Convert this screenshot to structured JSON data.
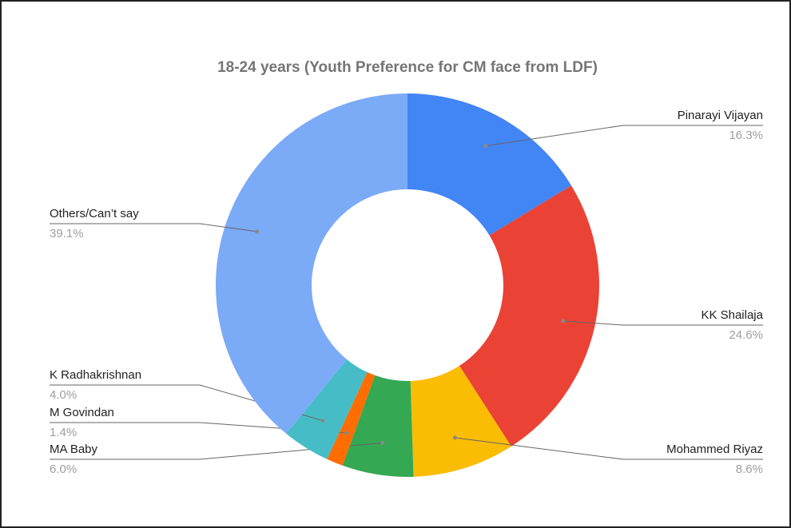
{
  "chart_data": {
    "type": "donut",
    "title": "18-24 years (Youth Preference for CM face from LDF)",
    "categories": [
      "Pinarayi Vijayan",
      "KK Shailaja",
      "Mohammed Riyaz",
      "MA Baby",
      "M Govindan",
      "K Radhakrishnan",
      "Others/Can’t say"
    ],
    "values": [
      16.3,
      24.6,
      8.6,
      6.0,
      1.4,
      4.0,
      39.1
    ],
    "value_labels": [
      "16.3%",
      "24.6%",
      "8.6%",
      "6.0%",
      "1.4%",
      "4.0%",
      "39.1%"
    ],
    "colors": [
      "#4285f4",
      "#ea4335",
      "#fbbc04",
      "#34a853",
      "#ff6d01",
      "#46bdc6",
      "#7baaf7"
    ]
  }
}
